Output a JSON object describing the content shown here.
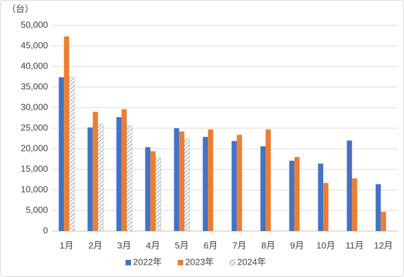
{
  "chart_data": {
    "type": "bar",
    "y_unit": "（台）",
    "categories": [
      "1月",
      "2月",
      "3月",
      "4月",
      "5月",
      "6月",
      "7月",
      "8月",
      "9月",
      "10月",
      "11月",
      "12月"
    ],
    "series": [
      {
        "name": "2022年",
        "color": "#4472c4",
        "values": [
          37400,
          25200,
          27700,
          20400,
          25000,
          22900,
          21900,
          20600,
          17100,
          16400,
          22000,
          11400
        ]
      },
      {
        "name": "2023年",
        "color": "#ed7d31",
        "values": [
          47300,
          29000,
          29600,
          19400,
          24200,
          24700,
          23400,
          24700,
          18000,
          11700,
          12800,
          4700
        ]
      },
      {
        "name": "2024年",
        "color": "#a5a5a5",
        "hatched": true,
        "values": [
          37400,
          26000,
          25600,
          17700,
          22400,
          null,
          null,
          null,
          null,
          null,
          null,
          null
        ]
      }
    ],
    "ylim": [
      0,
      50000
    ],
    "yticks": [
      0,
      {
        "value": 5000,
        "label": "5,000"
      },
      {
        "value": 10000,
        "label": "10,000"
      },
      {
        "value": 15000,
        "label": "15,000"
      },
      {
        "value": 20000,
        "label": "20,000"
      },
      {
        "value": 25000,
        "label": "25,000"
      },
      {
        "value": 30000,
        "label": "30,000"
      },
      {
        "value": 35000,
        "label": "35,000"
      },
      {
        "value": 40000,
        "label": "40,000"
      },
      {
        "value": 45000,
        "label": "45,000"
      },
      {
        "value": 50000,
        "label": "50,000"
      }
    ],
    "grid": true,
    "legend": "bottom"
  }
}
